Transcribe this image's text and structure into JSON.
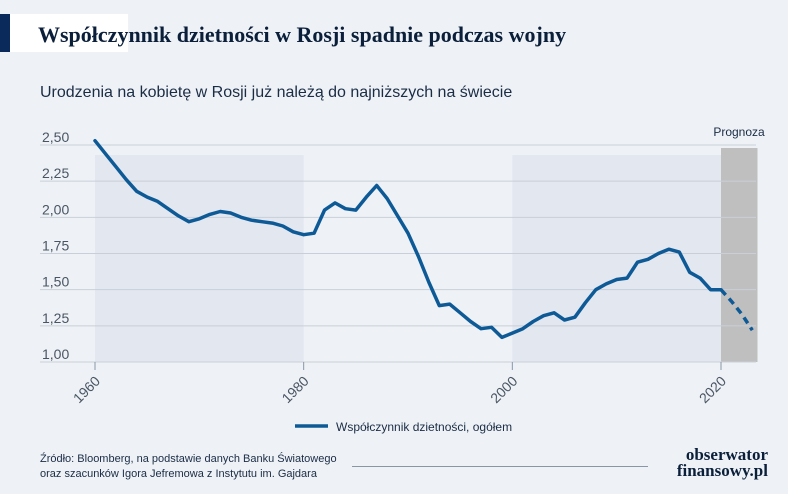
{
  "header": {
    "title": "Współczynnik dzietności w Rosji spadnie podczas wojny",
    "subtitle": "Urodzenia na kobietę w Rosji już należą do najniższych na świecie"
  },
  "chart_data": {
    "type": "line",
    "title": "Współczynnik dzietności w Rosji spadnie podczas wojny",
    "subtitle": "Urodzenia na kobietę w Rosji już należą do najniższych na świecie",
    "xlabel": "",
    "ylabel": "",
    "xlim": [
      1960,
      2023.5
    ],
    "ylim": [
      1.0,
      2.5
    ],
    "x_ticks": [
      1960,
      1980,
      2000,
      2020
    ],
    "x_tick_labels": [
      "1960",
      "1980",
      "2000",
      "2020"
    ],
    "y_ticks": [
      2.5,
      2.25,
      2.0,
      1.75,
      1.5,
      1.25,
      1.0
    ],
    "y_tick_labels": [
      "2,50",
      "2,25",
      "2,00",
      "1,75",
      "1,50",
      "1,25",
      "1,00"
    ],
    "grid": "horizontal",
    "shaded_periods": [
      [
        1960,
        1980
      ],
      [
        2000,
        2020
      ]
    ],
    "forecast_region": {
      "start": 2020,
      "end": 2023.5,
      "label": "Prognoza"
    },
    "legend_position": "bottom",
    "series": [
      {
        "name": "Współczynnik dzietności, ogółem",
        "color": "#0e5a96",
        "x": [
          1960,
          1961,
          1962,
          1963,
          1964,
          1965,
          1966,
          1967,
          1968,
          1969,
          1970,
          1971,
          1972,
          1973,
          1974,
          1975,
          1976,
          1977,
          1978,
          1979,
          1980,
          1981,
          1982,
          1983,
          1984,
          1985,
          1986,
          1987,
          1988,
          1989,
          1990,
          1991,
          1992,
          1993,
          1994,
          1995,
          1996,
          1997,
          1998,
          1999,
          2000,
          2001,
          2002,
          2003,
          2004,
          2005,
          2006,
          2007,
          2008,
          2009,
          2010,
          2011,
          2012,
          2013,
          2014,
          2015,
          2016,
          2017,
          2018,
          2019,
          2020
        ],
        "values": [
          2.53,
          2.44,
          2.35,
          2.26,
          2.18,
          2.14,
          2.11,
          2.06,
          2.01,
          1.97,
          1.99,
          2.02,
          2.04,
          2.03,
          2.0,
          1.98,
          1.97,
          1.96,
          1.94,
          1.9,
          1.88,
          1.89,
          2.05,
          2.1,
          2.06,
          2.05,
          2.14,
          2.22,
          2.13,
          2.01,
          1.89,
          1.73,
          1.55,
          1.39,
          1.4,
          1.34,
          1.28,
          1.23,
          1.24,
          1.17,
          1.2,
          1.23,
          1.28,
          1.32,
          1.34,
          1.29,
          1.31,
          1.41,
          1.5,
          1.54,
          1.57,
          1.58,
          1.69,
          1.71,
          1.75,
          1.78,
          1.76,
          1.62,
          1.58,
          1.5,
          1.5
        ],
        "forecast": {
          "x": [
            2020,
            2021,
            2022,
            2023
          ],
          "values": [
            1.5,
            1.42,
            1.33,
            1.22
          ]
        }
      }
    ]
  },
  "source": {
    "line1": "Źródło: Bloomberg, na podstawie danych Banku Światowego",
    "line2": "oraz szacunków Igora Jefremowa z Instytutu im. Gajdara"
  },
  "logo": {
    "line1": "obserwator",
    "line2": "finansowy.pl"
  },
  "colors": {
    "accent": "#0b2a5c",
    "line": "#0e5a96",
    "shade": "#e3e7ef",
    "forecast_shade": "#bfbfbf"
  }
}
